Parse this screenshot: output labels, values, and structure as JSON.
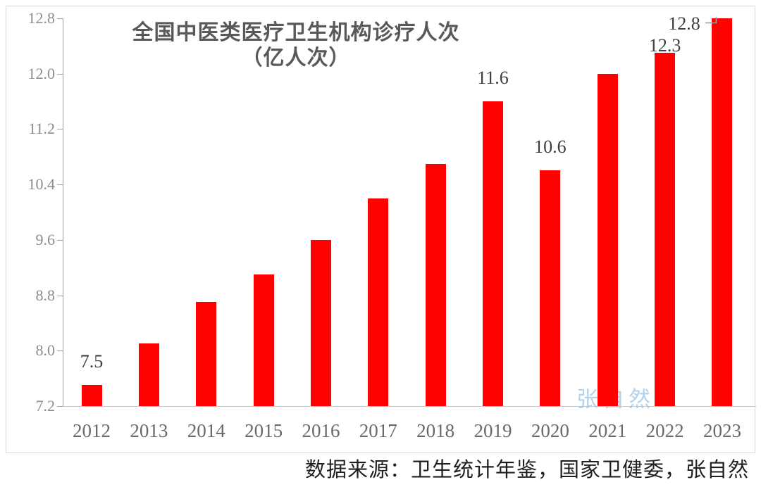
{
  "chart": {
    "title_line1": "全国中医类医疗卫生机构诊疗人次",
    "title_line2": "（亿人次）",
    "source": "数据来源：卫生统计年鉴，国家卫健委，张自然",
    "watermark": "张自然"
  },
  "chart_data": {
    "type": "bar",
    "title": "全国中医类医疗卫生机构诊疗人次（亿人次）",
    "categories": [
      "2012",
      "2013",
      "2014",
      "2015",
      "2016",
      "2017",
      "2018",
      "2019",
      "2020",
      "2021",
      "2022",
      "2023"
    ],
    "values": [
      7.5,
      8.1,
      8.7,
      9.1,
      9.6,
      10.2,
      10.7,
      11.6,
      10.6,
      12.0,
      12.3,
      12.8
    ],
    "ylabel": "亿人次",
    "xlabel": "",
    "ylim": [
      7.2,
      12.8
    ],
    "y_ticks": [
      "7.2",
      "8.0",
      "8.8",
      "9.6",
      "10.4",
      "11.2",
      "12.0",
      "12.8"
    ],
    "grid": false,
    "legend": "none",
    "bar_color": "#fe0202",
    "data_labels": [
      {
        "year": "2012",
        "text": "7.5",
        "placement": "above"
      },
      {
        "year": "2019",
        "text": "11.6",
        "placement": "above"
      },
      {
        "year": "2020",
        "text": "10.6",
        "placement": "above"
      },
      {
        "year": "2022",
        "text": "12.3",
        "placement": "tight"
      },
      {
        "year": "2023",
        "text": "12.8",
        "placement": "callout-left"
      }
    ]
  }
}
